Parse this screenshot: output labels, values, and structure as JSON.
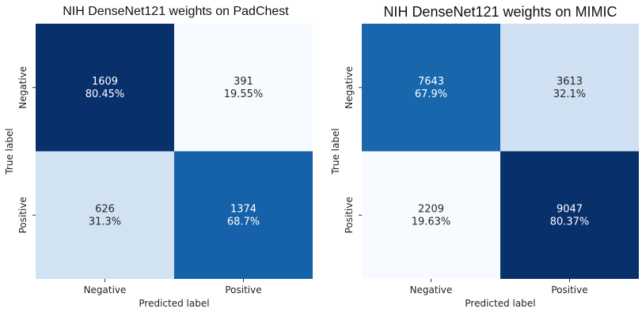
{
  "chart_data": [
    {
      "type": "heatmap",
      "title": "NIH DenseNet121 weights on PadChest",
      "xlabel": "Predicted label",
      "ylabel": "True label",
      "x_categories": [
        "Negative",
        "Positive"
      ],
      "y_categories": [
        "Negative",
        "Positive"
      ],
      "values": [
        [
          1609,
          391
        ],
        [
          626,
          1374
        ]
      ],
      "percent_labels": [
        [
          "80.45%",
          "19.55%"
        ],
        [
          "31.3%",
          "68.7%"
        ]
      ],
      "row_fractions": [
        [
          0.8045,
          0.1955
        ],
        [
          0.313,
          0.687
        ]
      ],
      "colorbar": false
    },
    {
      "type": "heatmap",
      "title": "NIH DenseNet121 weights on MIMIC",
      "xlabel": "Predicted label",
      "ylabel": "True label",
      "x_categories": [
        "Negative",
        "Positive"
      ],
      "y_categories": [
        "Negative",
        "Positive"
      ],
      "values": [
        [
          7643,
          3613
        ],
        [
          2209,
          9047
        ]
      ],
      "percent_labels": [
        [
          "67.9%",
          "32.1%"
        ],
        [
          "19.63%",
          "80.37%"
        ]
      ],
      "row_fractions": [
        [
          0.679,
          0.321
        ],
        [
          0.1963,
          0.8037
        ]
      ],
      "colorbar": false
    }
  ]
}
